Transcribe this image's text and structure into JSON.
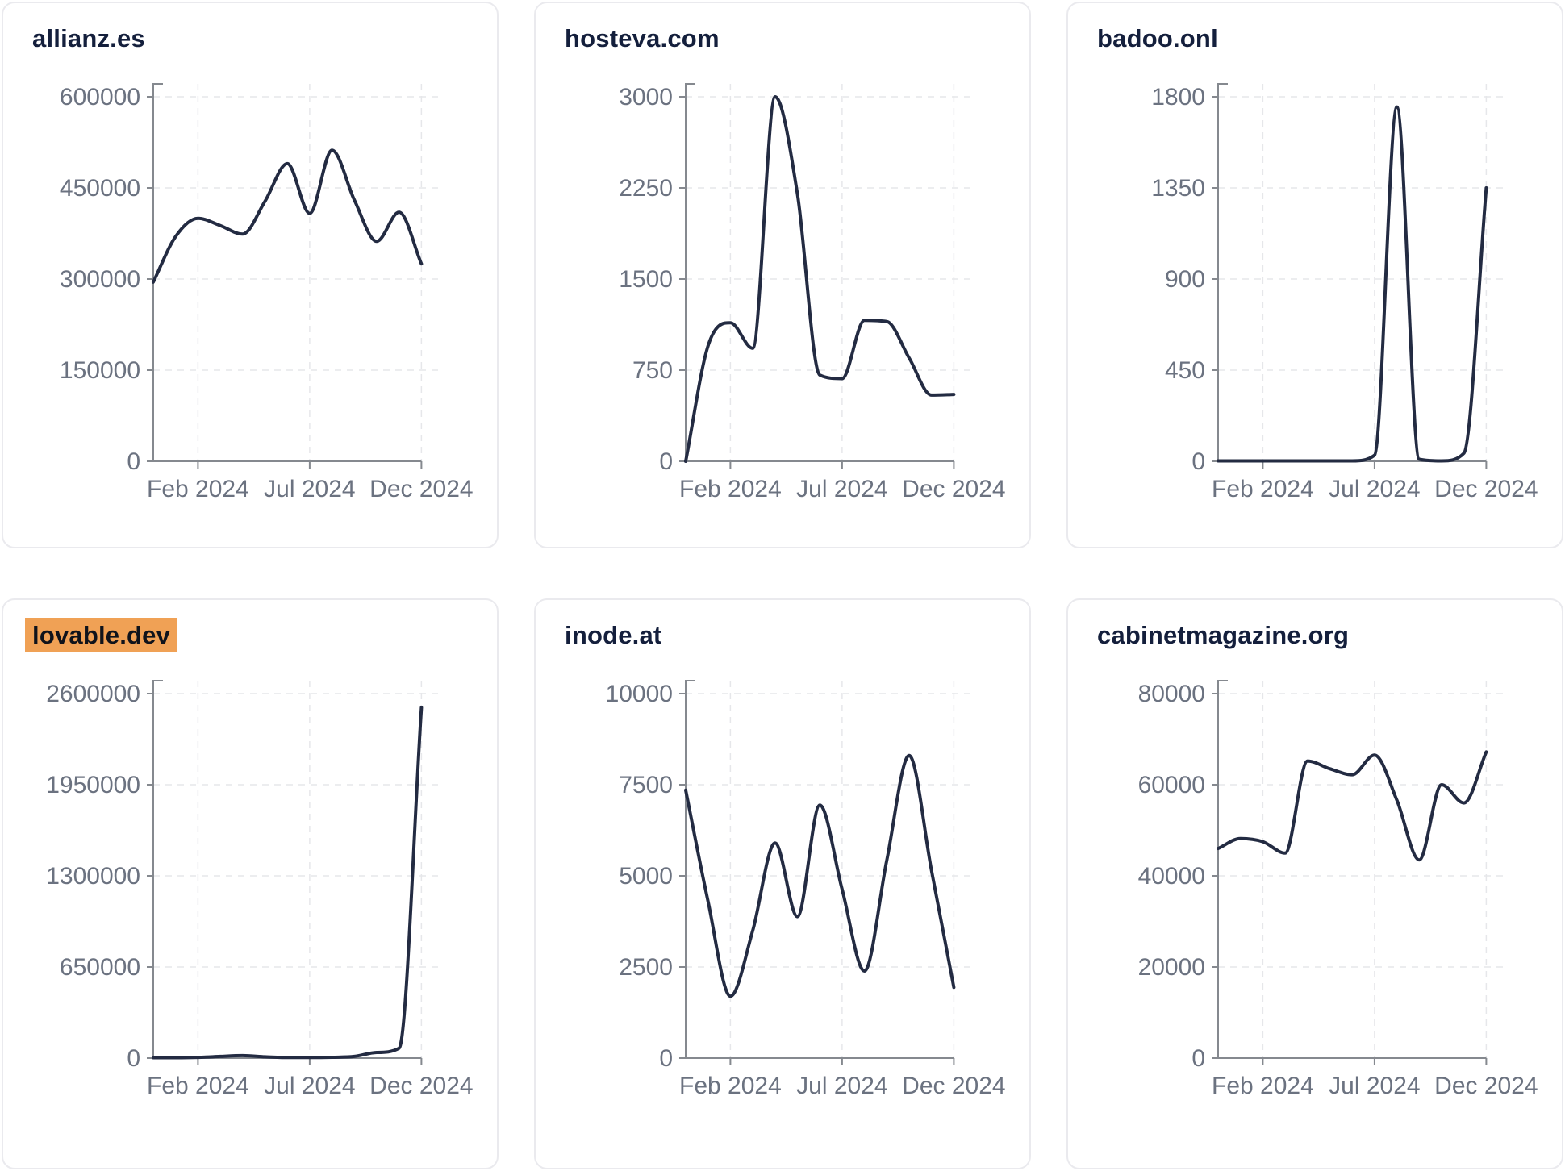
{
  "colors": {
    "line": "#232B42",
    "title": "#141F3C",
    "axis": "#85898F",
    "tick_label": "#6B7280",
    "grid": "#E6E7EA",
    "card_border": "#EAEAEE",
    "highlight_bg": "#F0A155",
    "page_bg": "#FFFFFF"
  },
  "chart_data": [
    {
      "type": "line",
      "title": "allianz.es",
      "highlighted": false,
      "x_months": [
        "2023-12",
        "2024-01",
        "2024-02",
        "2024-03",
        "2024-04",
        "2024-05",
        "2024-06",
        "2024-07",
        "2024-08",
        "2024-09",
        "2024-10",
        "2024-11",
        "2024-12"
      ],
      "values": [
        295000,
        370000,
        400000,
        388000,
        374000,
        428000,
        490000,
        408000,
        512000,
        430000,
        362000,
        410000,
        325000
      ],
      "y_ticks": [
        0,
        150000,
        300000,
        450000,
        600000
      ],
      "ylim": [
        0,
        600000
      ],
      "x_tick_labels": [
        "Feb 2024",
        "Jul 2024",
        "Dec 2024"
      ],
      "x_tick_indices": [
        2,
        7,
        12
      ],
      "grid": true,
      "legend": false
    },
    {
      "type": "line",
      "title": "hosteva.com",
      "highlighted": false,
      "x_months": [
        "2023-12",
        "2024-01",
        "2024-02",
        "2024-03",
        "2024-04",
        "2024-05",
        "2024-06",
        "2024-07",
        "2024-08",
        "2024-09",
        "2024-10",
        "2024-11",
        "2024-12"
      ],
      "values": [
        0,
        950,
        1140,
        930,
        3000,
        2200,
        710,
        680,
        1160,
        1150,
        850,
        545,
        550
      ],
      "y_ticks": [
        0,
        750,
        1500,
        2250,
        3000
      ],
      "ylim": [
        0,
        3000
      ],
      "x_tick_labels": [
        "Feb 2024",
        "Jul 2024",
        "Dec 2024"
      ],
      "x_tick_indices": [
        2,
        7,
        12
      ],
      "grid": true,
      "legend": false
    },
    {
      "type": "line",
      "title": "badoo.onl",
      "highlighted": false,
      "x_months": [
        "2023-12",
        "2024-01",
        "2024-02",
        "2024-03",
        "2024-04",
        "2024-05",
        "2024-06",
        "2024-07",
        "2024-08",
        "2024-09",
        "2024-10",
        "2024-11",
        "2024-12"
      ],
      "values": [
        2,
        2,
        2,
        2,
        2,
        2,
        2,
        30,
        1750,
        10,
        2,
        40,
        1350
      ],
      "y_ticks": [
        0,
        450,
        900,
        1350,
        1800
      ],
      "ylim": [
        0,
        1800
      ],
      "x_tick_labels": [
        "Feb 2024",
        "Jul 2024",
        "Dec 2024"
      ],
      "x_tick_indices": [
        2,
        7,
        12
      ],
      "grid": true,
      "legend": false
    },
    {
      "type": "line",
      "title": "lovable.dev",
      "highlighted": true,
      "x_months": [
        "2023-12",
        "2024-01",
        "2024-02",
        "2024-03",
        "2024-04",
        "2024-05",
        "2024-06",
        "2024-07",
        "2024-08",
        "2024-09",
        "2024-10",
        "2024-11",
        "2024-12"
      ],
      "values": [
        3000,
        3000,
        5000,
        12000,
        18000,
        9000,
        4000,
        4000,
        6000,
        12000,
        40000,
        70000,
        2500000
      ],
      "y_ticks": [
        0,
        650000,
        1300000,
        1950000,
        2600000
      ],
      "ylim": [
        0,
        2600000
      ],
      "x_tick_labels": [
        "Feb 2024",
        "Jul 2024",
        "Dec 2024"
      ],
      "x_tick_indices": [
        2,
        7,
        12
      ],
      "grid": true,
      "legend": false
    },
    {
      "type": "line",
      "title": "inode.at",
      "highlighted": false,
      "x_months": [
        "2023-12",
        "2024-01",
        "2024-02",
        "2024-03",
        "2024-04",
        "2024-05",
        "2024-06",
        "2024-07",
        "2024-08",
        "2024-09",
        "2024-10",
        "2024-11",
        "2024-12"
      ],
      "values": [
        7350,
        4300,
        1700,
        3500,
        5900,
        3880,
        6940,
        4630,
        2390,
        5430,
        8300,
        5150,
        1940
      ],
      "y_ticks": [
        0,
        2500,
        5000,
        7500,
        10000
      ],
      "ylim": [
        0,
        10000
      ],
      "x_tick_labels": [
        "Feb 2024",
        "Jul 2024",
        "Dec 2024"
      ],
      "x_tick_indices": [
        2,
        7,
        12
      ],
      "grid": true,
      "legend": false
    },
    {
      "type": "line",
      "title": "cabinetmagazine.org",
      "highlighted": false,
      "x_months": [
        "2023-12",
        "2024-01",
        "2024-02",
        "2024-03",
        "2024-04",
        "2024-05",
        "2024-06",
        "2024-07",
        "2024-08",
        "2024-09",
        "2024-10",
        "2024-11",
        "2024-12"
      ],
      "values": [
        46000,
        48200,
        47500,
        45000,
        65200,
        63500,
        62200,
        66500,
        56600,
        43500,
        60000,
        56000,
        67200
      ],
      "y_ticks": [
        0,
        20000,
        40000,
        60000,
        80000
      ],
      "ylim": [
        0,
        80000
      ],
      "x_tick_labels": [
        "Feb 2024",
        "Jul 2024",
        "Dec 2024"
      ],
      "x_tick_indices": [
        2,
        7,
        12
      ],
      "grid": true,
      "legend": false
    }
  ]
}
